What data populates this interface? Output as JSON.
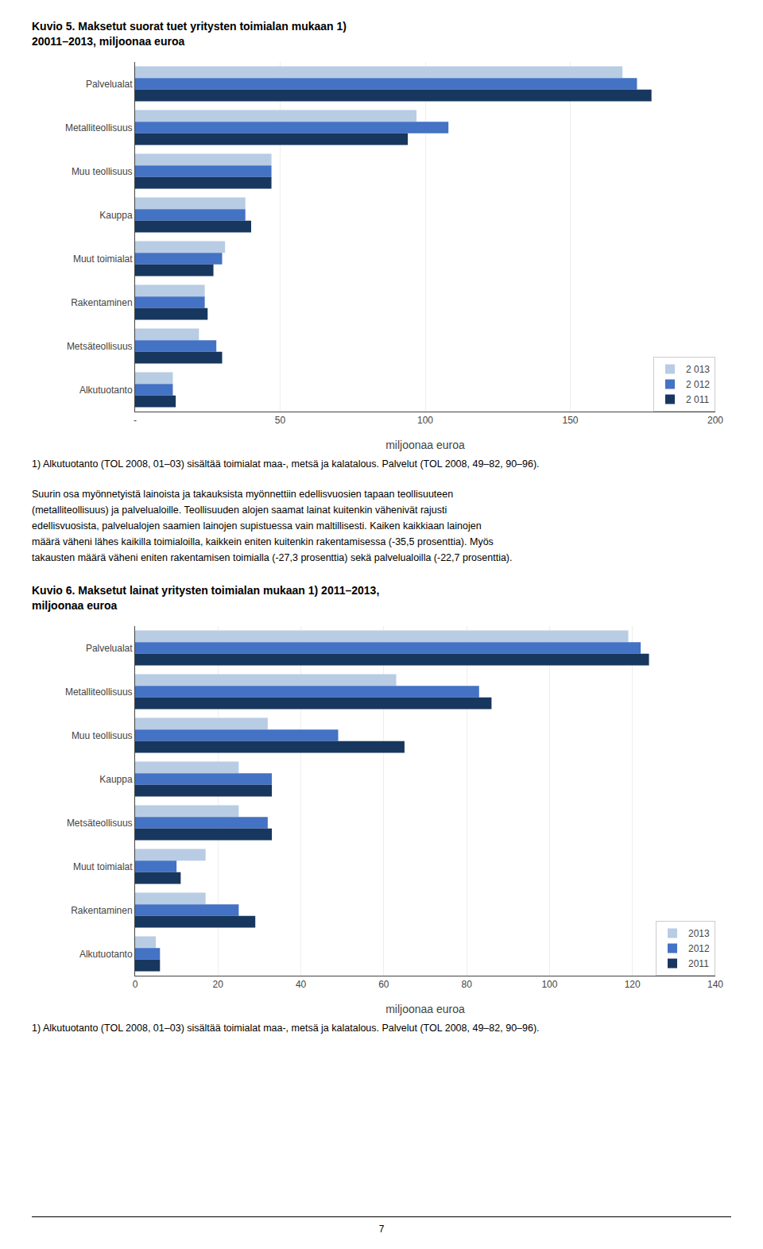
{
  "chart_data": [
    {
      "type": "bar",
      "orientation": "horizontal",
      "title": "Kuvio 5. Maksetut suorat tuet yritysten toimialan mukaan 1)",
      "subtitle": "20011–2013, miljoonaa euroa",
      "categories": [
        "Palvelualat",
        "Metalliteollisuus",
        "Muu teollisuus",
        "Kauppa",
        "Muut toimialat",
        "Rakentaminen",
        "Metsäteollisuus",
        "Alkutuotanto"
      ],
      "series": [
        {
          "name": "2 013",
          "color": "#b8cce4",
          "values": [
            168,
            97,
            47,
            38,
            31,
            24,
            22,
            13
          ]
        },
        {
          "name": "2 012",
          "color": "#4472c4",
          "values": [
            173,
            108,
            47,
            38,
            30,
            24,
            28,
            13
          ]
        },
        {
          "name": "2 011",
          "color": "#17375e",
          "values": [
            178,
            94,
            47,
            40,
            27,
            25,
            30,
            14
          ]
        }
      ],
      "xlabel": "miljoonaa euroa",
      "xlim": [
        0,
        200
      ],
      "xticks": [
        {
          "value": 0,
          "label": "-"
        },
        50,
        100,
        150,
        200
      ],
      "grid": true,
      "legend": "lower right",
      "annotations": [
        "1) Alkutuotanto (TOL 2008, 01–03) sisältää toimialat maa-, metsä ja kalatalous. Palvelut (TOL 2008, 49–82, 90–96).",
        "Suurin osa myönnetyistä lainoista ja takauksista myönnettiin edellisvuosien tapaan teollisuuteen",
        "(metalliteollisuus) ja palvelualoille. Teollisuuden alojen saamat lainat kuitenkin vähenivät rajusti",
        "edellisvuosista, palvelualojen saamien lainojen supistuessa vain maltillisesti. Kaiken kaikkiaan lainojen",
        "määrä väheni lähes kaikilla toimialoilla, kaikkein eniten kuitenkin rakentamisessa (-35,5 prosenttia). Myös",
        "takausten määrä väheni eniten rakentamisen toimialla (-27,3 prosenttia) sekä palvelualoilla (-22,7 prosenttia)."
      ]
    },
    {
      "type": "bar",
      "orientation": "horizontal",
      "title": "Kuvio 6. Maksetut lainat yritysten toimialan mukaan 1) 2011–2013,",
      "subtitle": "miljoonaa euroa",
      "categories": [
        "Palvelualat",
        "Metalliteollisuus",
        "Muu teollisuus",
        "Kauppa",
        "Metsäteollisuus",
        "Muut toimialat",
        "Rakentaminen",
        "Alkutuotanto"
      ],
      "series": [
        {
          "name": "2013",
          "color": "#b8cce4",
          "values": [
            119,
            63,
            32,
            25,
            25,
            17,
            17,
            5
          ]
        },
        {
          "name": "2012",
          "color": "#4472c4",
          "values": [
            122,
            83,
            49,
            33,
            32,
            10,
            25,
            6
          ]
        },
        {
          "name": "2011",
          "color": "#17375e",
          "values": [
            124,
            86,
            65,
            33,
            33,
            11,
            29,
            6
          ]
        }
      ],
      "xlabel": "miljoonaa euroa",
      "xlim": [
        0,
        140
      ],
      "xticks": [
        0,
        20,
        40,
        60,
        80,
        100,
        120,
        140
      ],
      "grid": true,
      "legend": "lower right",
      "annotations": [
        "1) Alkutuotanto (TOL 2008, 01–03) sisältää toimialat maa-, metsä ja kalatalous. Palvelut (TOL 2008, 49–82, 90–96).",
        "7"
      ]
    }
  ]
}
